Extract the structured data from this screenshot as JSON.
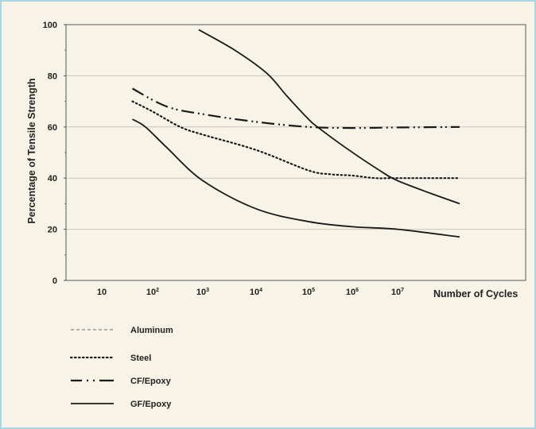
{
  "chart_data": {
    "type": "line",
    "xlabel": "Number of Cycles",
    "ylabel": "Percentage of Tensile Strength",
    "x_scale": "log",
    "ylim": [
      0,
      100
    ],
    "y_ticks": [
      "0",
      "20",
      "40",
      "60",
      "80",
      "100"
    ],
    "x_ticks": [
      {
        "base": "10",
        "exp": ""
      },
      {
        "base": "10",
        "exp": "2"
      },
      {
        "base": "10",
        "exp": "3"
      },
      {
        "base": "10",
        "exp": "4"
      },
      {
        "base": "10",
        "exp": "5"
      },
      {
        "base": "10",
        "exp": "6"
      },
      {
        "base": "10",
        "exp": "7"
      }
    ],
    "grid": "horizontal",
    "legend_position": "bottom-left",
    "series": [
      {
        "name": "Aluminum",
        "legend_style": "dashed-gray",
        "style": "solid",
        "x": [
          830,
          4000,
          16000,
          39000,
          100000,
          160000,
          690000,
          4000000,
          10000000,
          50000000,
          200000000
        ],
        "y": [
          98,
          90,
          81,
          72,
          63,
          60,
          52,
          43,
          39,
          34,
          30
        ]
      },
      {
        "name": "Steel",
        "style": "dotted",
        "x": [
          40,
          100,
          355,
          1000,
          10000,
          100000,
          320000,
          1000000,
          3200000,
          10000000,
          200000000
        ],
        "y": [
          70,
          66,
          60,
          57,
          51,
          43,
          41.5,
          41,
          40,
          40,
          40
        ]
      },
      {
        "name": "CF/Epoxy",
        "style": "dash-dot",
        "x": [
          40,
          190,
          1000,
          10000,
          100000,
          1000000,
          10000000,
          200000000
        ],
        "y": [
          75,
          68,
          65,
          62,
          60,
          59.6,
          59.8,
          60
        ]
      },
      {
        "name": "GF/Epoxy",
        "style": "solid",
        "x": [
          40,
          72,
          190,
          1000,
          10000,
          100000,
          1000000,
          10000000,
          200000000
        ],
        "y": [
          63,
          60,
          52,
          39,
          28,
          23,
          21,
          20,
          17
        ]
      }
    ]
  }
}
